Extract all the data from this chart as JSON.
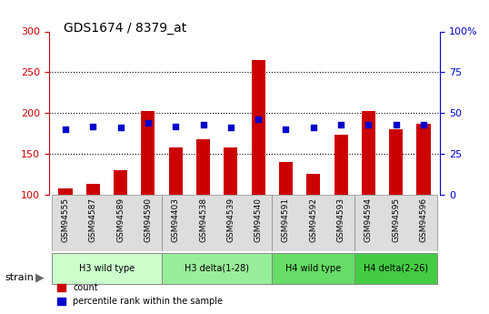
{
  "title": "GDS1674 / 8379_at",
  "samples": [
    "GSM94555",
    "GSM94587",
    "GSM94589",
    "GSM94590",
    "GSM94403",
    "GSM94538",
    "GSM94539",
    "GSM94540",
    "GSM94591",
    "GSM94592",
    "GSM94593",
    "GSM94594",
    "GSM94595",
    "GSM94596"
  ],
  "counts": [
    108,
    113,
    130,
    203,
    158,
    168,
    158,
    265,
    140,
    125,
    173,
    203,
    180,
    187
  ],
  "percentiles": [
    40,
    42,
    41,
    44,
    42,
    43,
    41,
    46,
    40,
    41,
    43,
    43,
    43,
    43
  ],
  "groups": [
    {
      "label": "H3 wild type",
      "indices": [
        0,
        1,
        2,
        3
      ],
      "color": "#ccffcc"
    },
    {
      "label": "H3 delta(1-28)",
      "indices": [
        4,
        5,
        6,
        7
      ],
      "color": "#99ee99"
    },
    {
      "label": "H4 wild type",
      "indices": [
        8,
        9,
        10
      ],
      "color": "#66dd66"
    },
    {
      "label": "H4 delta(2-26)",
      "indices": [
        11,
        12,
        13
      ],
      "color": "#44cc44"
    }
  ],
  "ylim_left": [
    100,
    300
  ],
  "ylim_right": [
    0,
    100
  ],
  "yticks_left": [
    100,
    150,
    200,
    250,
    300
  ],
  "yticks_right": [
    0,
    25,
    50,
    75,
    100
  ],
  "bar_color": "#cc0000",
  "dot_color": "#0000cc",
  "bg_color": "#dddddd",
  "plot_bg": "#ffffff",
  "grid_color": "#000000",
  "label_color_left": "#cc0000",
  "label_color_right": "#0000cc"
}
